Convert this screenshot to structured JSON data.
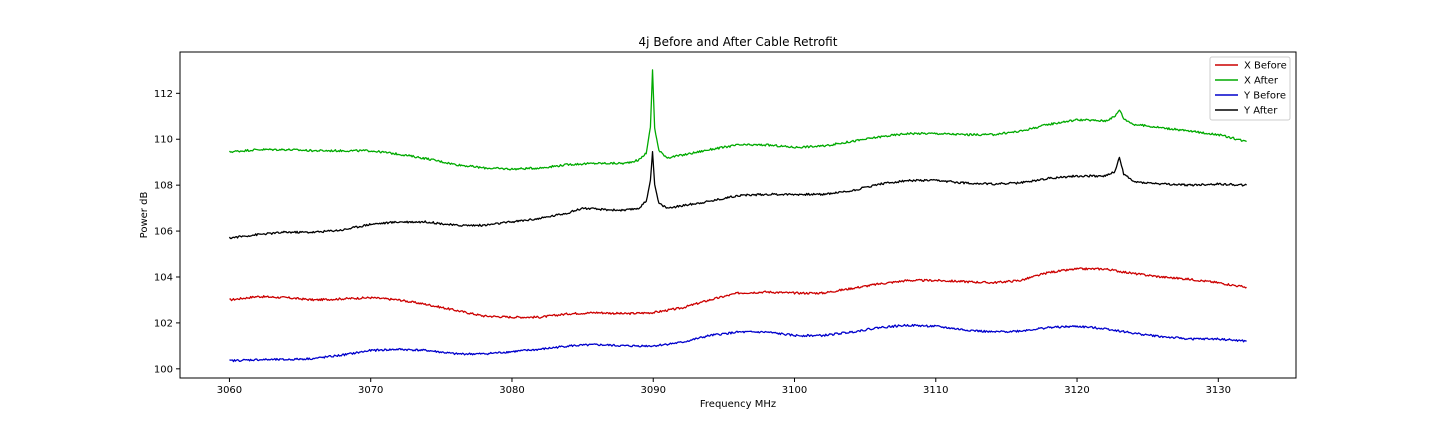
{
  "chart_data": {
    "type": "line",
    "title": "4j Before and After Cable Retrofit",
    "xlabel": "Frequency MHz",
    "ylabel": "Power dB",
    "xlim": [
      3056.5,
      3135.5
    ],
    "ylim": [
      99.6,
      113.8
    ],
    "xticks": [
      3060,
      3070,
      3080,
      3090,
      3100,
      3110,
      3120,
      3130
    ],
    "yticks": [
      100,
      102,
      104,
      106,
      108,
      110,
      112
    ],
    "grid": false,
    "legend_position": "top-right",
    "series": [
      {
        "name": "X Before",
        "color": "#cc0000",
        "points": [
          [
            3060,
            103.0
          ],
          [
            3062,
            103.15
          ],
          [
            3064,
            103.1
          ],
          [
            3066,
            103.0
          ],
          [
            3068,
            103.05
          ],
          [
            3070,
            103.1
          ],
          [
            3072,
            103.0
          ],
          [
            3074,
            102.8
          ],
          [
            3076,
            102.55
          ],
          [
            3078,
            102.3
          ],
          [
            3080,
            102.25
          ],
          [
            3082,
            102.25
          ],
          [
            3084,
            102.4
          ],
          [
            3086,
            102.45
          ],
          [
            3088,
            102.4
          ],
          [
            3090,
            102.45
          ],
          [
            3092,
            102.65
          ],
          [
            3094,
            103.0
          ],
          [
            3096,
            103.3
          ],
          [
            3098,
            103.35
          ],
          [
            3100,
            103.3
          ],
          [
            3102,
            103.3
          ],
          [
            3104,
            103.5
          ],
          [
            3106,
            103.7
          ],
          [
            3108,
            103.85
          ],
          [
            3110,
            103.85
          ],
          [
            3112,
            103.8
          ],
          [
            3114,
            103.75
          ],
          [
            3116,
            103.85
          ],
          [
            3118,
            104.2
          ],
          [
            3120,
            104.35
          ],
          [
            3122,
            104.35
          ],
          [
            3124,
            104.15
          ],
          [
            3126,
            104.0
          ],
          [
            3128,
            103.9
          ],
          [
            3130,
            103.75
          ],
          [
            3132,
            103.55
          ]
        ]
      },
      {
        "name": "X After",
        "color": "#00aa00",
        "points": [
          [
            3060,
            109.45
          ],
          [
            3062,
            109.55
          ],
          [
            3064,
            109.55
          ],
          [
            3066,
            109.5
          ],
          [
            3068,
            109.5
          ],
          [
            3070,
            109.5
          ],
          [
            3072,
            109.35
          ],
          [
            3074,
            109.15
          ],
          [
            3076,
            108.9
          ],
          [
            3078,
            108.75
          ],
          [
            3080,
            108.7
          ],
          [
            3082,
            108.75
          ],
          [
            3084,
            108.9
          ],
          [
            3086,
            108.95
          ],
          [
            3088,
            108.95
          ],
          [
            3089,
            109.1
          ],
          [
            3089.5,
            109.4
          ],
          [
            3089.8,
            110.5
          ],
          [
            3089.95,
            113.0
          ],
          [
            3090.1,
            110.5
          ],
          [
            3090.4,
            109.5
          ],
          [
            3091,
            109.2
          ],
          [
            3092,
            109.3
          ],
          [
            3094,
            109.55
          ],
          [
            3096,
            109.75
          ],
          [
            3098,
            109.75
          ],
          [
            3100,
            109.65
          ],
          [
            3102,
            109.7
          ],
          [
            3104,
            109.9
          ],
          [
            3106,
            110.1
          ],
          [
            3108,
            110.25
          ],
          [
            3110,
            110.25
          ],
          [
            3112,
            110.2
          ],
          [
            3114,
            110.2
          ],
          [
            3116,
            110.35
          ],
          [
            3118,
            110.65
          ],
          [
            3120,
            110.85
          ],
          [
            3122,
            110.8
          ],
          [
            3122.7,
            111.0
          ],
          [
            3123,
            111.3
          ],
          [
            3123.3,
            110.9
          ],
          [
            3124,
            110.65
          ],
          [
            3126,
            110.5
          ],
          [
            3128,
            110.35
          ],
          [
            3130,
            110.2
          ],
          [
            3132,
            109.9
          ]
        ]
      },
      {
        "name": "Y Before",
        "color": "#0000cc",
        "points": [
          [
            3060,
            100.35
          ],
          [
            3062,
            100.4
          ],
          [
            3064,
            100.4
          ],
          [
            3066,
            100.45
          ],
          [
            3068,
            100.6
          ],
          [
            3070,
            100.8
          ],
          [
            3072,
            100.85
          ],
          [
            3074,
            100.8
          ],
          [
            3076,
            100.65
          ],
          [
            3078,
            100.65
          ],
          [
            3080,
            100.75
          ],
          [
            3082,
            100.85
          ],
          [
            3084,
            101.0
          ],
          [
            3086,
            101.05
          ],
          [
            3088,
            101.0
          ],
          [
            3090,
            101.0
          ],
          [
            3092,
            101.15
          ],
          [
            3094,
            101.45
          ],
          [
            3096,
            101.6
          ],
          [
            3098,
            101.6
          ],
          [
            3100,
            101.45
          ],
          [
            3102,
            101.45
          ],
          [
            3104,
            101.6
          ],
          [
            3106,
            101.8
          ],
          [
            3108,
            101.9
          ],
          [
            3110,
            101.85
          ],
          [
            3112,
            101.7
          ],
          [
            3114,
            101.6
          ],
          [
            3116,
            101.65
          ],
          [
            3118,
            101.8
          ],
          [
            3120,
            101.85
          ],
          [
            3122,
            101.75
          ],
          [
            3124,
            101.55
          ],
          [
            3126,
            101.4
          ],
          [
            3128,
            101.3
          ],
          [
            3130,
            101.3
          ],
          [
            3132,
            101.2
          ]
        ]
      },
      {
        "name": "Y After",
        "color": "#000000",
        "points": [
          [
            3060,
            105.7
          ],
          [
            3062,
            105.85
          ],
          [
            3064,
            105.95
          ],
          [
            3066,
            105.95
          ],
          [
            3068,
            106.05
          ],
          [
            3070,
            106.3
          ],
          [
            3072,
            106.4
          ],
          [
            3074,
            106.4
          ],
          [
            3076,
            106.25
          ],
          [
            3078,
            106.25
          ],
          [
            3080,
            106.4
          ],
          [
            3082,
            106.55
          ],
          [
            3084,
            106.8
          ],
          [
            3085,
            107.0
          ],
          [
            3086,
            106.95
          ],
          [
            3088,
            106.9
          ],
          [
            3089,
            107.0
          ],
          [
            3089.5,
            107.3
          ],
          [
            3089.8,
            108.2
          ],
          [
            3089.95,
            109.5
          ],
          [
            3090.1,
            108.0
          ],
          [
            3090.4,
            107.2
          ],
          [
            3091,
            107.0
          ],
          [
            3092,
            107.1
          ],
          [
            3094,
            107.3
          ],
          [
            3096,
            107.55
          ],
          [
            3098,
            107.6
          ],
          [
            3100,
            107.6
          ],
          [
            3102,
            107.6
          ],
          [
            3104,
            107.75
          ],
          [
            3106,
            108.05
          ],
          [
            3108,
            108.2
          ],
          [
            3110,
            108.2
          ],
          [
            3112,
            108.1
          ],
          [
            3114,
            108.05
          ],
          [
            3116,
            108.1
          ],
          [
            3118,
            108.3
          ],
          [
            3120,
            108.4
          ],
          [
            3122,
            108.4
          ],
          [
            3122.7,
            108.6
          ],
          [
            3123,
            109.2
          ],
          [
            3123.3,
            108.5
          ],
          [
            3124,
            108.15
          ],
          [
            3126,
            108.05
          ],
          [
            3128,
            108.0
          ],
          [
            3130,
            108.05
          ],
          [
            3132,
            108.0
          ]
        ]
      }
    ]
  }
}
